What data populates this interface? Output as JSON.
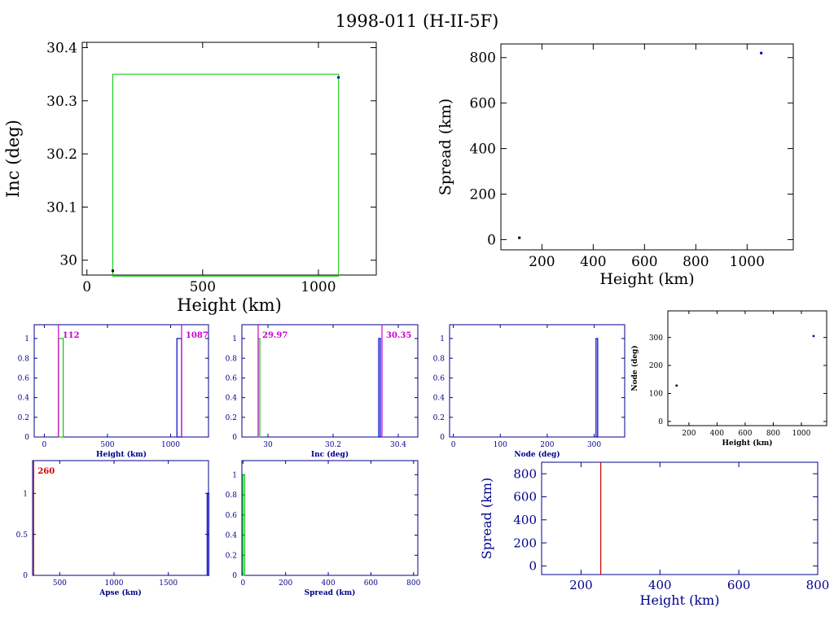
{
  "page": {
    "title": "1998-011 (H-II-5F)"
  },
  "colors": {
    "axis": "#000000",
    "axis_blue": "#00008b",
    "magenta": "#cc00cc",
    "green": "#00cc00",
    "red": "#cc0000",
    "blue": "#0000cc",
    "point": "#000000"
  },
  "chart_data": [
    {
      "id": "inc-vs-height",
      "type": "scatter",
      "xlabel": "Height (km)",
      "ylabel": "Inc (deg)",
      "xlim": [
        -20,
        1250
      ],
      "ylim": [
        29.972,
        30.41
      ],
      "xticks": [
        0,
        500,
        1000
      ],
      "yticks": [
        30,
        30.1,
        30.2,
        30.3,
        30.4
      ],
      "box": {
        "x0": 112,
        "x1": 1087,
        "y0": 29.97,
        "y1": 30.35
      },
      "points": [
        {
          "x": 112,
          "y": 29.98,
          "color": "#000000"
        },
        {
          "x": 1087,
          "y": 30.344,
          "color": "#0000cc"
        }
      ]
    },
    {
      "id": "spread-vs-height",
      "type": "scatter",
      "xlabel": "Height (km)",
      "ylabel": "Spread (km)",
      "xlim": [
        40,
        1180
      ],
      "ylim": [
        -45,
        860
      ],
      "xticks": [
        200,
        400,
        600,
        800,
        1000
      ],
      "yticks": [
        0,
        200,
        400,
        600,
        800
      ],
      "points": [
        {
          "x": 112,
          "y": 8,
          "color": "#000000"
        },
        {
          "x": 1055,
          "y": 820,
          "color": "#0000cc"
        }
      ]
    },
    {
      "id": "height-hist",
      "type": "bar",
      "xlabel": "Height (km)",
      "ylabel": "",
      "xlim": [
        -80,
        1300
      ],
      "ylim": [
        0,
        1.14
      ],
      "xticks": [
        0,
        500,
        1000
      ],
      "yticks": [
        0,
        0.2,
        0.4,
        0.6,
        0.8,
        1
      ],
      "ytick_labels": [
        "0",
        "0.2",
        "0.4",
        "0.6",
        "0.8",
        "1"
      ],
      "bars": [
        {
          "x0": 112,
          "x1": 150,
          "value": 1,
          "color": "#00cc00"
        },
        {
          "x0": 1050,
          "x1": 1087,
          "value": 1,
          "color": "#0000cc"
        }
      ],
      "markers": [
        {
          "x": 112,
          "label": "112",
          "color": "#cc00cc"
        },
        {
          "x": 1087,
          "label": "1087",
          "color": "#cc00cc"
        }
      ]
    },
    {
      "id": "inc-hist",
      "type": "bar",
      "xlabel": "Inc (deg)",
      "ylabel": "",
      "xlim": [
        29.92,
        30.46
      ],
      "ylim": [
        0,
        1.14
      ],
      "xticks": [
        30,
        30.2,
        30.4
      ],
      "yticks": [
        0,
        0.2,
        0.4,
        0.6,
        0.8,
        1
      ],
      "ytick_labels": [
        "0",
        "0.2",
        "0.4",
        "0.6",
        "0.8",
        "1"
      ],
      "bars": [
        {
          "x0": 29.97,
          "x1": 29.975,
          "value": 1,
          "color": "#00cc00"
        },
        {
          "x0": 30.34,
          "x1": 30.345,
          "value": 1,
          "color": "#0000cc"
        }
      ],
      "markers": [
        {
          "x": 29.97,
          "label": "29.97",
          "color": "#cc00cc"
        },
        {
          "x": 30.35,
          "label": "30.35",
          "color": "#cc00cc"
        }
      ]
    },
    {
      "id": "node-hist",
      "type": "bar",
      "xlabel": "Node (deg)",
      "ylabel": "",
      "xlim": [
        -8,
        365
      ],
      "ylim": [
        0,
        1.14
      ],
      "xticks": [
        0,
        100,
        200,
        300
      ],
      "yticks": [
        0,
        0.2,
        0.4,
        0.6,
        0.8,
        1
      ],
      "ytick_labels": [
        "0",
        "0.2",
        "0.4",
        "0.6",
        "0.8",
        "1"
      ],
      "bars": [
        {
          "x0": 304,
          "x1": 306,
          "value": 1,
          "color": "#0000cc"
        }
      ],
      "markers": []
    },
    {
      "id": "node-vs-height",
      "type": "scatter",
      "xlabel": "Height (km)",
      "ylabel": "Node (deg)",
      "xlim": [
        50,
        1180
      ],
      "ylim": [
        -15,
        395
      ],
      "xticks": [
        200,
        400,
        600,
        800,
        1000
      ],
      "yticks": [
        0,
        100,
        200,
        300
      ],
      "points": [
        {
          "x": 112,
          "y": 128,
          "color": "#000000"
        },
        {
          "x": 1087,
          "y": 305,
          "color": "#0000cc"
        }
      ]
    },
    {
      "id": "apse-hist",
      "type": "bar",
      "xlabel": "Apse (km)",
      "ylabel": "",
      "xlim": [
        250,
        1870
      ],
      "ylim": [
        0,
        1.4
      ],
      "xticks": [
        500,
        1000,
        1500
      ],
      "yticks": [
        0,
        0.5,
        1
      ],
      "ytick_labels": [
        "0",
        "0.5",
        "1"
      ],
      "bars": [
        {
          "x0": 1858,
          "x1": 1866,
          "value": 1,
          "color": "#0000cc"
        }
      ],
      "markers": [
        {
          "x": 260,
          "label": "260",
          "color": "#cc0000"
        }
      ]
    },
    {
      "id": "spread-hist",
      "type": "bar",
      "xlabel": "Spread (km)",
      "ylabel": "",
      "xlim": [
        -5,
        820
      ],
      "ylim": [
        0,
        1.14
      ],
      "xticks": [
        0,
        200,
        400,
        600,
        800
      ],
      "yticks": [
        0,
        0.2,
        0.4,
        0.6,
        0.8,
        1
      ],
      "ytick_labels": [
        "0",
        "0.2",
        "0.4",
        "0.6",
        "0.8",
        "1"
      ],
      "bars": [
        {
          "x0": 0,
          "x1": 8,
          "value": 1,
          "color": "#00cc00"
        }
      ],
      "markers": []
    },
    {
      "id": "spread-vs-height-2",
      "type": "scatter",
      "xlabel": "Height (km)",
      "ylabel": "Spread (km)",
      "xlim": [
        100,
        800
      ],
      "ylim": [
        -75,
        900
      ],
      "xticks": [
        200,
        400,
        600,
        800
      ],
      "yticks": [
        0,
        200,
        400,
        600,
        800
      ],
      "vlines": [
        {
          "x": 250,
          "color": "#cc0000"
        }
      ],
      "points": []
    }
  ]
}
